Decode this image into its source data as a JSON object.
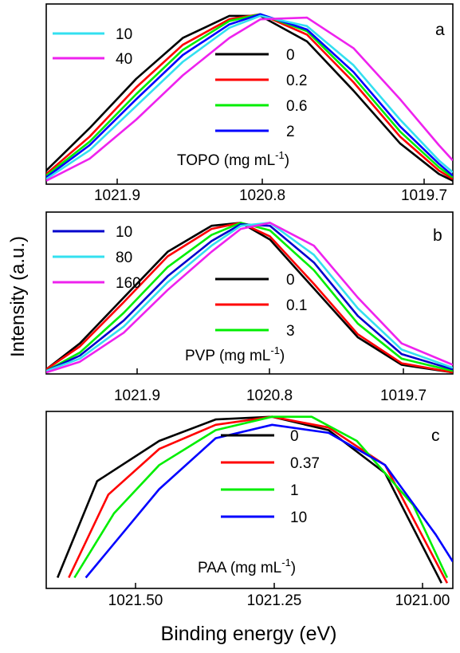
{
  "figure": {
    "ylabel": "Intensity (a.u.)",
    "xlabel": "Binding energy (eV)"
  },
  "chart_data": [
    {
      "type": "line",
      "panel_letter": "a",
      "legend_title_main": "TOPO (mg mL",
      "legend_title_sup": "-1",
      "legend_title_close": ")",
      "xlim": [
        1022.28,
        1019.66
      ],
      "xscale": "linear, reversed",
      "ylim": [
        0,
        1.06
      ],
      "xticks": [
        "1021.9",
        "1020.8",
        "1019.7"
      ],
      "yticks": [],
      "grid": false,
      "legend_left": [
        "10",
        "40"
      ],
      "legend_right": [
        "0",
        "0.2",
        "0.6",
        "2"
      ],
      "series": [
        {
          "name": "0",
          "color": "#000000",
          "x": [
            1022.28,
            1022.0,
            1021.7,
            1021.4,
            1021.1,
            1020.9,
            1020.6,
            1020.3,
            1020.0,
            1019.75,
            1019.66
          ],
          "y": [
            0.08,
            0.33,
            0.62,
            0.86,
            0.99,
            0.99,
            0.84,
            0.55,
            0.24,
            0.06,
            0.02
          ]
        },
        {
          "name": "0.2",
          "color": "#ff0000",
          "x": [
            1022.28,
            1022.0,
            1021.7,
            1021.4,
            1021.1,
            1020.9,
            1020.6,
            1020.3,
            1020.0,
            1019.75,
            1019.66
          ],
          "y": [
            0.06,
            0.28,
            0.57,
            0.82,
            0.97,
            1.0,
            0.88,
            0.6,
            0.28,
            0.08,
            0.03
          ]
        },
        {
          "name": "0.6",
          "color": "#00ee00",
          "x": [
            1022.28,
            1022.0,
            1021.7,
            1021.4,
            1021.1,
            1020.9,
            1020.6,
            1020.3,
            1020.0,
            1019.75,
            1019.66
          ],
          "y": [
            0.05,
            0.25,
            0.53,
            0.79,
            0.96,
            1.0,
            0.9,
            0.63,
            0.31,
            0.1,
            0.04
          ]
        },
        {
          "name": "2",
          "color": "#0000ff",
          "x": [
            1022.28,
            1022.0,
            1021.7,
            1021.4,
            1021.1,
            1020.9,
            1020.6,
            1020.3,
            1020.0,
            1019.75,
            1019.66
          ],
          "y": [
            0.04,
            0.23,
            0.5,
            0.76,
            0.94,
            1.0,
            0.91,
            0.66,
            0.34,
            0.12,
            0.05
          ]
        },
        {
          "name": "10",
          "color": "#33e0f0",
          "x": [
            1022.28,
            1022.0,
            1021.7,
            1021.4,
            1021.1,
            1020.9,
            1020.6,
            1020.3,
            1020.0,
            1019.75,
            1019.66
          ],
          "y": [
            0.03,
            0.2,
            0.46,
            0.72,
            0.92,
            0.99,
            0.93,
            0.7,
            0.38,
            0.14,
            0.07
          ]
        },
        {
          "name": "40",
          "color": "#ee22ee",
          "x": [
            1022.28,
            1022.0,
            1021.7,
            1021.4,
            1021.1,
            1020.9,
            1020.6,
            1020.3,
            1020.0,
            1019.75,
            1019.66
          ],
          "y": [
            0.02,
            0.15,
            0.38,
            0.64,
            0.86,
            0.97,
            0.98,
            0.8,
            0.5,
            0.23,
            0.14
          ]
        }
      ]
    },
    {
      "type": "line",
      "panel_letter": "b",
      "legend_title_main": "PVP (mg mL",
      "legend_title_sup": "-1",
      "legend_title_close": ")",
      "xlim": [
        1022.33,
        1019.55
      ],
      "xscale": "linear, reversed",
      "ylim": [
        0,
        1.06
      ],
      "xticks": [
        "1021.9",
        "1020.8",
        "1019.7"
      ],
      "yticks": [],
      "grid": false,
      "legend_left": [
        "10",
        "80",
        "160"
      ],
      "legend_right": [
        "0",
        "0.1",
        "3"
      ],
      "series": [
        {
          "name": "0",
          "color": "#000000",
          "x": [
            1022.33,
            1022.1,
            1021.8,
            1021.5,
            1021.2,
            1021.0,
            1020.8,
            1020.5,
            1020.2,
            1019.9,
            1019.55
          ],
          "y": [
            0.03,
            0.2,
            0.5,
            0.8,
            0.97,
            0.99,
            0.88,
            0.56,
            0.24,
            0.06,
            0.01
          ]
        },
        {
          "name": "0.1",
          "color": "#ff0000",
          "x": [
            1022.33,
            1022.1,
            1021.8,
            1021.5,
            1021.2,
            1021.0,
            1020.8,
            1020.5,
            1020.2,
            1019.9,
            1019.55
          ],
          "y": [
            0.03,
            0.18,
            0.47,
            0.77,
            0.95,
            0.99,
            0.9,
            0.59,
            0.26,
            0.07,
            0.01
          ]
        },
        {
          "name": "3",
          "color": "#00ee00",
          "x": [
            1022.33,
            1022.1,
            1021.8,
            1021.5,
            1021.2,
            1021.0,
            1020.8,
            1020.5,
            1020.2,
            1019.9,
            1019.55
          ],
          "y": [
            0.02,
            0.14,
            0.4,
            0.7,
            0.91,
            0.99,
            0.94,
            0.68,
            0.33,
            0.1,
            0.02
          ]
        },
        {
          "name": "10",
          "color": "#0000cc",
          "x": [
            1022.33,
            1022.1,
            1021.8,
            1021.5,
            1021.2,
            1021.0,
            1020.8,
            1020.5,
            1020.2,
            1019.9,
            1019.55
          ],
          "y": [
            0.02,
            0.12,
            0.35,
            0.64,
            0.87,
            0.98,
            0.97,
            0.73,
            0.38,
            0.13,
            0.03
          ]
        },
        {
          "name": "80",
          "color": "#33e0f0",
          "x": [
            1022.33,
            1022.1,
            1021.8,
            1021.5,
            1021.2,
            1021.0,
            1020.8,
            1020.5,
            1020.2,
            1019.9,
            1019.55
          ],
          "y": [
            0.02,
            0.1,
            0.31,
            0.6,
            0.84,
            0.97,
            0.99,
            0.78,
            0.43,
            0.16,
            0.04
          ]
        },
        {
          "name": "160",
          "color": "#ee22ee",
          "x": [
            1022.33,
            1022.1,
            1021.8,
            1021.5,
            1021.2,
            1021.0,
            1020.8,
            1020.5,
            1020.2,
            1019.9,
            1019.55
          ],
          "y": [
            0.01,
            0.08,
            0.27,
            0.55,
            0.8,
            0.95,
            0.99,
            0.84,
            0.5,
            0.2,
            0.06
          ]
        }
      ]
    },
    {
      "type": "line",
      "panel_letter": "c",
      "legend_title_main": "PAA (mg mL",
      "legend_title_sup": "-1",
      "legend_title_close": ")",
      "xlim": [
        1021.65,
        1020.93
      ],
      "xscale": "linear, reversed",
      "ylim": [
        0.36,
        1.02
      ],
      "xticks": [
        "1021.50",
        "1021.25",
        "1021.00"
      ],
      "yticks": [],
      "grid": false,
      "legend_left": [],
      "legend_right": [
        "0",
        "0.37",
        "1",
        "10"
      ],
      "series": [
        {
          "name": "0",
          "color": "#000000",
          "x": [
            1021.63,
            1021.56,
            1021.45,
            1021.35,
            1021.25,
            1021.15,
            1021.05,
            1020.95
          ],
          "y": [
            0.4,
            0.76,
            0.91,
            0.99,
            1.0,
            0.95,
            0.79,
            0.38
          ]
        },
        {
          "name": "0.37",
          "color": "#ff0000",
          "x": [
            1021.61,
            1021.54,
            1021.45,
            1021.35,
            1021.25,
            1021.15,
            1021.05,
            1020.94
          ],
          "y": [
            0.4,
            0.71,
            0.88,
            0.97,
            1.0,
            0.96,
            0.82,
            0.38
          ]
        },
        {
          "name": "1",
          "color": "#00ee00",
          "x": [
            1021.6,
            1021.53,
            1021.45,
            1021.35,
            1021.25,
            1021.18,
            1021.1,
            1021.0,
            1020.94
          ],
          "y": [
            0.4,
            0.64,
            0.82,
            0.95,
            1.0,
            1.0,
            0.91,
            0.67,
            0.4
          ]
        },
        {
          "name": "10",
          "color": "#0000ff",
          "x": [
            1021.58,
            1021.45,
            1021.35,
            1021.25,
            1021.15,
            1021.05,
            1020.96,
            1020.93
          ],
          "y": [
            0.4,
            0.73,
            0.92,
            0.97,
            0.94,
            0.82,
            0.56,
            0.46
          ]
        }
      ]
    }
  ]
}
